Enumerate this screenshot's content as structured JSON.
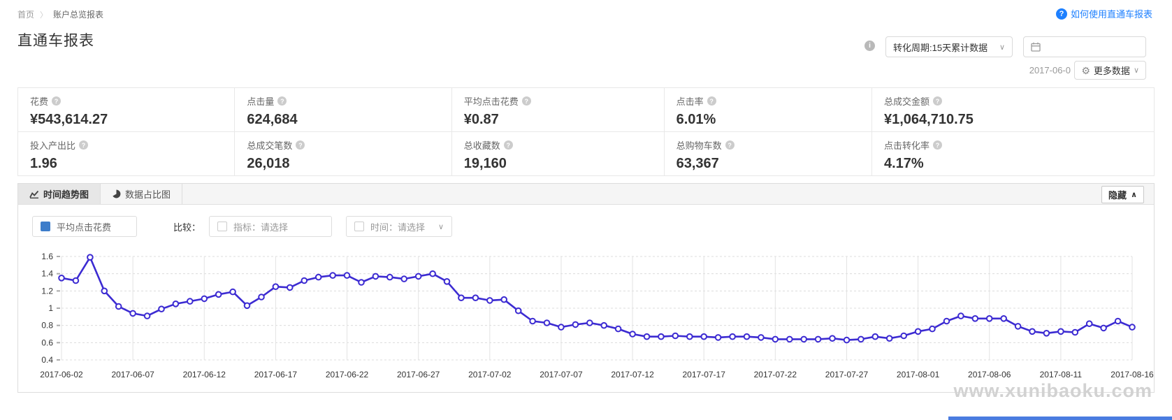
{
  "breadcrumb": {
    "home": "首页",
    "current": "账户总览报表"
  },
  "header": {
    "title": "直通车报表",
    "help_link": "如何使用直通车报表",
    "help_icon_glyph": "?",
    "conversion_select": "转化周期:15天累计数据",
    "date_text": "2017-06-0",
    "more_data_label": "更多数据",
    "gear_glyph": "⚙",
    "chevron_down": "∨",
    "chevron_up": "∧"
  },
  "stats": {
    "rows": [
      [
        {
          "label": "花费",
          "value": "¥543,614.27"
        },
        {
          "label": "点击量",
          "value": "624,684"
        },
        {
          "label": "平均点击花费",
          "value": "¥0.87"
        },
        {
          "label": "点击率",
          "value": "6.01%"
        },
        {
          "label": "总成交金额",
          "value": "¥1,064,710.75"
        }
      ],
      [
        {
          "label": "投入产出比",
          "value": "1.96"
        },
        {
          "label": "总成交笔数",
          "value": "26,018"
        },
        {
          "label": "总收藏数",
          "value": "19,160"
        },
        {
          "label": "总购物车数",
          "value": "63,367"
        },
        {
          "label": "点击转化率",
          "value": "4.17%"
        }
      ]
    ]
  },
  "chart_panel": {
    "tabs": [
      {
        "label": "时间趋势图",
        "active": true
      },
      {
        "label": "数据占比图",
        "active": false
      }
    ],
    "hide_button": "隐藏",
    "legend": {
      "series_label": "平均点击花费",
      "compare_label": "比较：",
      "metric_select": "指标：请选择",
      "time_select": "时间：请选择"
    },
    "watermark": "www.xunibaoku.com"
  },
  "colors": {
    "accent_blue": "#1e80ff",
    "line_color": "#3c2bd2",
    "legend_swatch": "#3d7dca"
  },
  "chart_data": {
    "type": "line",
    "series_name": "平均点击花费",
    "start_date": "2017-06-02",
    "x_unit": "day",
    "x_tick_labels": [
      "2017-06-02",
      "2017-06-07",
      "2017-06-12",
      "2017-06-17",
      "2017-06-22",
      "2017-06-27",
      "2017-07-02",
      "2017-07-07",
      "2017-07-12",
      "2017-07-17",
      "2017-07-22",
      "2017-07-27",
      "2017-08-01",
      "2017-08-06",
      "2017-08-11",
      "2017-08-16"
    ],
    "x_tick_every": 5,
    "values": [
      1.35,
      1.32,
      1.59,
      1.2,
      1.02,
      0.94,
      0.91,
      0.99,
      1.05,
      1.08,
      1.11,
      1.16,
      1.19,
      1.03,
      1.13,
      1.25,
      1.24,
      1.32,
      1.36,
      1.38,
      1.38,
      1.3,
      1.37,
      1.36,
      1.34,
      1.37,
      1.4,
      1.31,
      1.12,
      1.12,
      1.09,
      1.1,
      0.97,
      0.85,
      0.83,
      0.78,
      0.81,
      0.83,
      0.8,
      0.76,
      0.7,
      0.67,
      0.67,
      0.68,
      0.67,
      0.67,
      0.66,
      0.67,
      0.67,
      0.66,
      0.64,
      0.64,
      0.64,
      0.64,
      0.65,
      0.63,
      0.64,
      0.67,
      0.65,
      0.68,
      0.73,
      0.76,
      0.85,
      0.91,
      0.88,
      0.88,
      0.88,
      0.79,
      0.73,
      0.71,
      0.73,
      0.72,
      0.82,
      0.77,
      0.85,
      0.78
    ],
    "ylim": [
      0.4,
      1.6
    ],
    "y_ticks": [
      0.4,
      0.6,
      0.8,
      1,
      1.2,
      1.4,
      1.6
    ],
    "line_color": "#3c2bd2",
    "marker": "hollow-circle",
    "grid": {
      "horizontal": "dashed",
      "vertical": "solid"
    },
    "legend_position": "top-left-as-filter"
  }
}
